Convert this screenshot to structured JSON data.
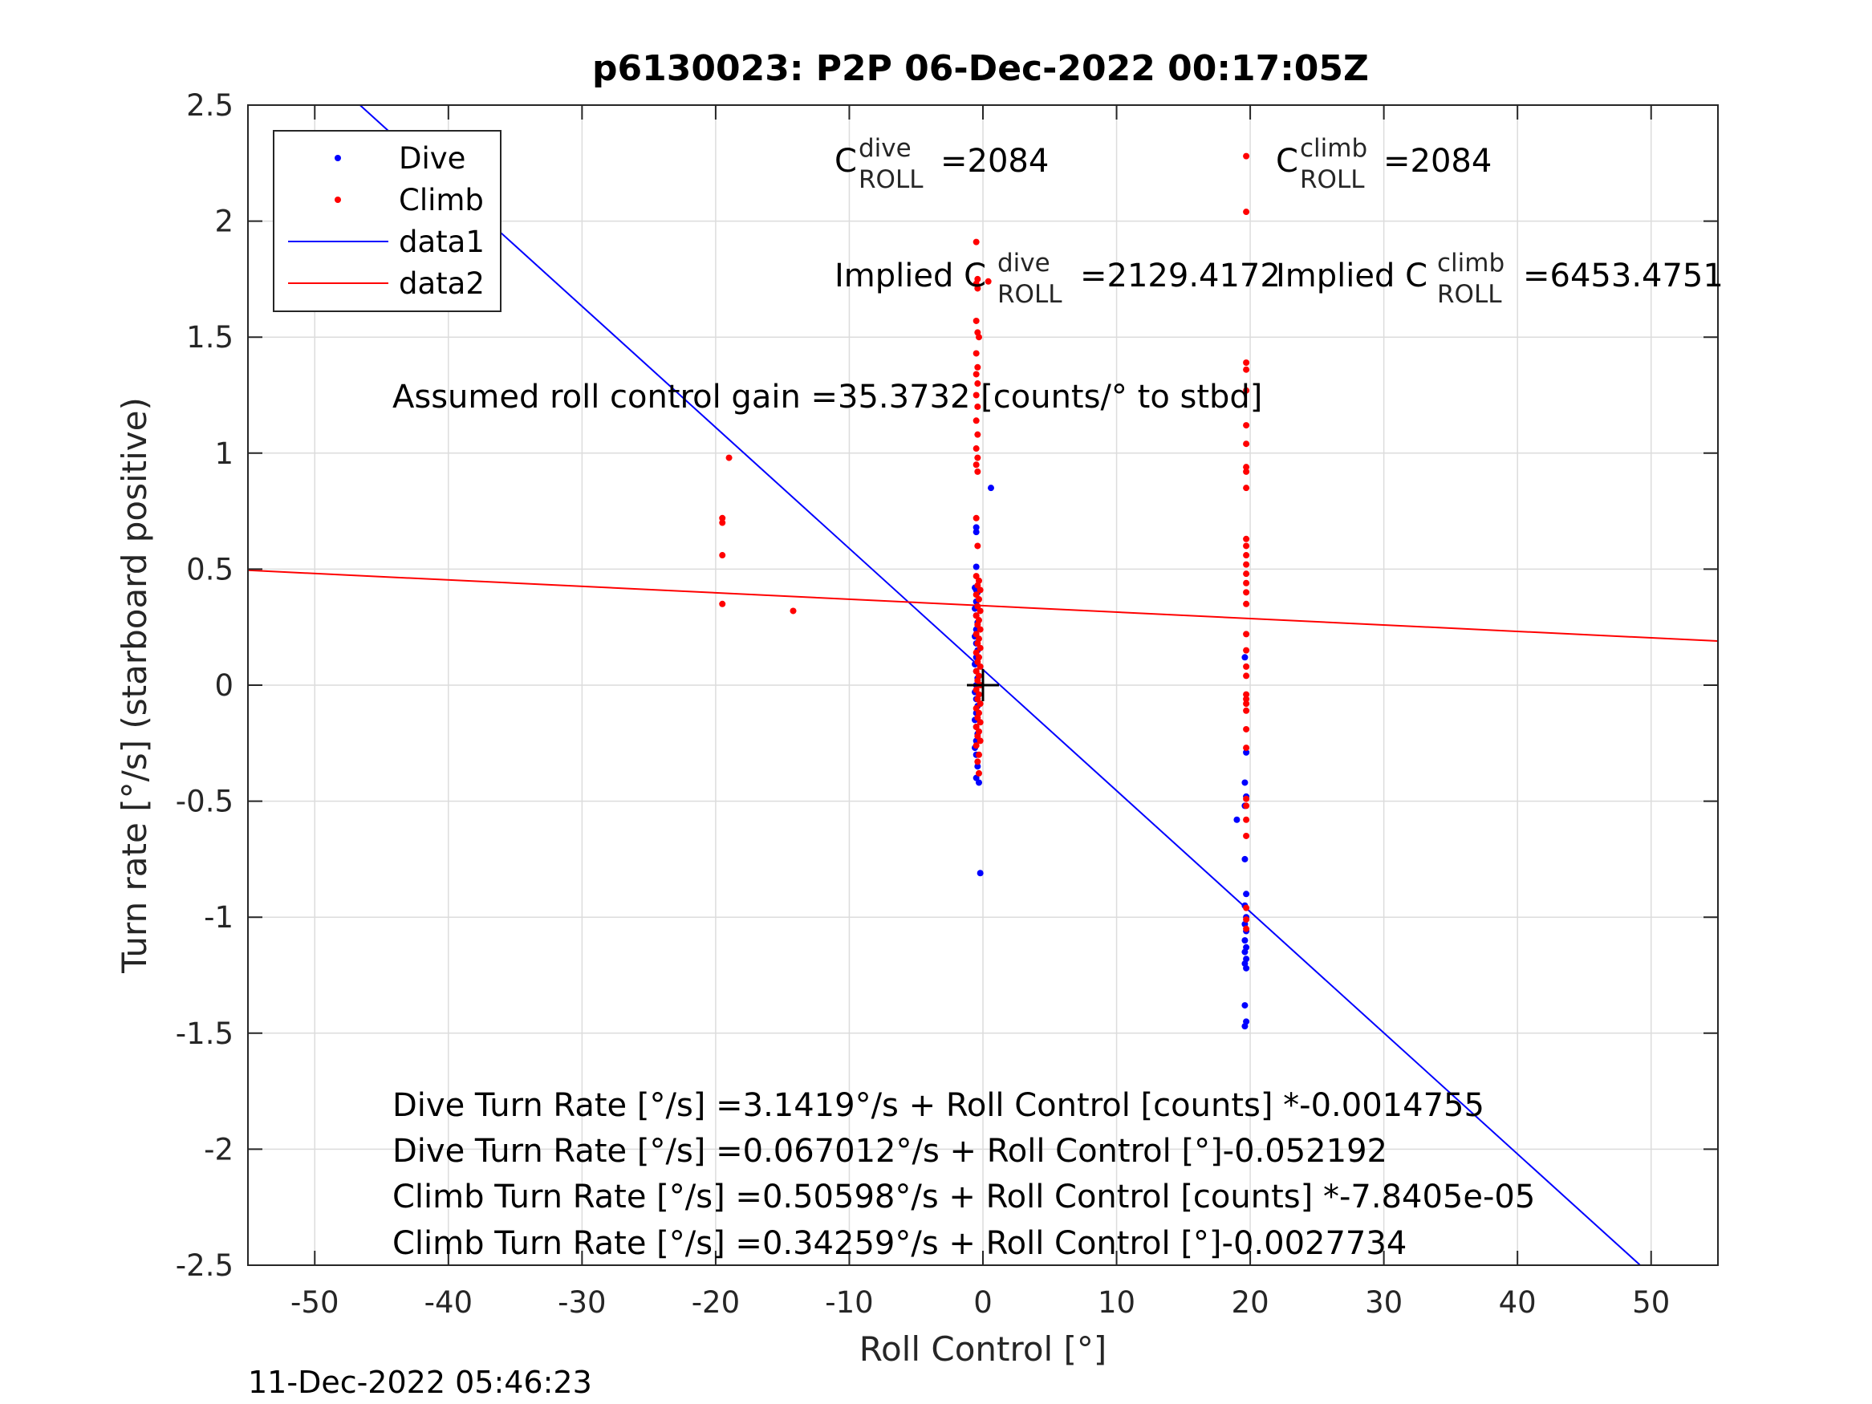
{
  "chart_data": {
    "type": "scatter",
    "title": "p6130023: P2P 06-Dec-2022 00:17:05Z",
    "xlabel": "Roll Control [°]",
    "ylabel": "Turn rate [°/s] (starboard positive)",
    "xlim": [
      -55,
      55
    ],
    "ylim": [
      -2.5,
      2.5
    ],
    "xticks": [
      -50,
      -40,
      -30,
      -20,
      -10,
      0,
      10,
      20,
      30,
      40,
      50
    ],
    "yticks": [
      -2.5,
      -2,
      -1.5,
      -1,
      -0.5,
      0,
      0.5,
      1,
      1.5,
      2,
      2.5
    ],
    "grid": true,
    "legend_position": "top-left",
    "colors": {
      "dive": "#0000ff",
      "climb": "#ff0000",
      "marker": "#000000"
    },
    "series": [
      {
        "name": "Dive",
        "kind": "points",
        "points": [
          [
            0.6,
            0.85
          ],
          [
            -0.5,
            0.68
          ],
          [
            -0.5,
            0.66
          ],
          [
            -0.5,
            0.51
          ],
          [
            -0.6,
            0.42
          ],
          [
            -0.5,
            0.41
          ],
          [
            -0.4,
            0.4
          ],
          [
            -0.5,
            0.36
          ],
          [
            -0.6,
            0.33
          ],
          [
            -0.5,
            0.3
          ],
          [
            -0.4,
            0.27
          ],
          [
            -0.5,
            0.24
          ],
          [
            -0.6,
            0.21
          ],
          [
            -0.5,
            0.18
          ],
          [
            -0.4,
            0.15
          ],
          [
            -0.5,
            0.12
          ],
          [
            -0.6,
            0.09
          ],
          [
            -0.5,
            0.06
          ],
          [
            -0.4,
            0.03
          ],
          [
            -0.5,
            0.0
          ],
          [
            -0.6,
            -0.03
          ],
          [
            -0.5,
            -0.06
          ],
          [
            -0.4,
            -0.09
          ],
          [
            -0.5,
            -0.12
          ],
          [
            -0.6,
            -0.15
          ],
          [
            -0.5,
            -0.18
          ],
          [
            -0.4,
            -0.21
          ],
          [
            -0.5,
            -0.24
          ],
          [
            -0.6,
            -0.27
          ],
          [
            -0.5,
            -0.3
          ],
          [
            -0.4,
            -0.35
          ],
          [
            -0.5,
            -0.4
          ],
          [
            -0.3,
            -0.42
          ],
          [
            -0.2,
            -0.81
          ],
          [
            19.6,
            0.12
          ],
          [
            19.7,
            -0.29
          ],
          [
            19.6,
            -0.42
          ],
          [
            19.7,
            -0.48
          ],
          [
            19.6,
            -0.52
          ],
          [
            19.0,
            -0.58
          ],
          [
            19.6,
            -0.75
          ],
          [
            19.7,
            -0.9
          ],
          [
            19.6,
            -0.95
          ],
          [
            19.7,
            -1.0
          ],
          [
            19.6,
            -1.03
          ],
          [
            19.7,
            -1.06
          ],
          [
            19.6,
            -1.1
          ],
          [
            19.7,
            -1.13
          ],
          [
            19.6,
            -1.15
          ],
          [
            19.7,
            -1.18
          ],
          [
            19.6,
            -1.2
          ],
          [
            19.7,
            -1.22
          ],
          [
            19.6,
            -1.38
          ],
          [
            19.7,
            -1.45
          ],
          [
            19.6,
            -1.47
          ]
        ]
      },
      {
        "name": "Climb",
        "kind": "points",
        "points": [
          [
            -19.5,
            0.72
          ],
          [
            -19.5,
            0.7
          ],
          [
            -19.5,
            0.56
          ],
          [
            -19.5,
            0.35
          ],
          [
            -19.0,
            0.98
          ],
          [
            -14.2,
            0.32
          ],
          [
            -0.5,
            1.91
          ],
          [
            -0.4,
            1.75
          ],
          [
            -0.5,
            1.73
          ],
          [
            0.4,
            1.74
          ],
          [
            -0.4,
            1.71
          ],
          [
            -0.5,
            1.57
          ],
          [
            -0.4,
            1.52
          ],
          [
            -0.3,
            1.5
          ],
          [
            -0.5,
            1.43
          ],
          [
            -0.4,
            1.37
          ],
          [
            -0.5,
            1.34
          ],
          [
            -0.4,
            1.3
          ],
          [
            -0.5,
            1.25
          ],
          [
            -0.4,
            1.2
          ],
          [
            -0.5,
            1.14
          ],
          [
            -0.4,
            1.08
          ],
          [
            -0.5,
            1.02
          ],
          [
            -0.4,
            0.98
          ],
          [
            -0.5,
            0.95
          ],
          [
            -0.4,
            0.92
          ],
          [
            -0.5,
            0.72
          ],
          [
            -0.4,
            0.6
          ],
          [
            -0.5,
            0.47
          ],
          [
            -0.3,
            0.45
          ],
          [
            -0.4,
            0.43
          ],
          [
            -0.2,
            0.41
          ],
          [
            -0.5,
            0.39
          ],
          [
            -0.3,
            0.37
          ],
          [
            -0.4,
            0.34
          ],
          [
            -0.2,
            0.32
          ],
          [
            -0.5,
            0.3
          ],
          [
            -0.3,
            0.28
          ],
          [
            -0.4,
            0.26
          ],
          [
            -0.2,
            0.24
          ],
          [
            -0.5,
            0.22
          ],
          [
            -0.3,
            0.2
          ],
          [
            -0.4,
            0.18
          ],
          [
            -0.2,
            0.16
          ],
          [
            -0.5,
            0.14
          ],
          [
            -0.3,
            0.12
          ],
          [
            -0.4,
            0.1
          ],
          [
            -0.2,
            0.08
          ],
          [
            -0.5,
            0.06
          ],
          [
            -0.3,
            0.04
          ],
          [
            -0.4,
            0.02
          ],
          [
            -0.2,
            0.0
          ],
          [
            -0.5,
            -0.02
          ],
          [
            -0.3,
            -0.04
          ],
          [
            -0.4,
            -0.06
          ],
          [
            -0.2,
            -0.08
          ],
          [
            -0.5,
            -0.1
          ],
          [
            -0.3,
            -0.12
          ],
          [
            -0.4,
            -0.14
          ],
          [
            -0.2,
            -0.16
          ],
          [
            -0.5,
            -0.18
          ],
          [
            -0.3,
            -0.2
          ],
          [
            -0.4,
            -0.22
          ],
          [
            -0.2,
            -0.24
          ],
          [
            -0.5,
            -0.26
          ],
          [
            -0.3,
            -0.3
          ],
          [
            -0.4,
            -0.33
          ],
          [
            -0.3,
            -0.38
          ],
          [
            19.7,
            2.28
          ],
          [
            19.7,
            2.04
          ],
          [
            19.7,
            1.39
          ],
          [
            19.7,
            1.36
          ],
          [
            19.7,
            1.27
          ],
          [
            19.7,
            1.12
          ],
          [
            19.7,
            1.04
          ],
          [
            19.7,
            0.94
          ],
          [
            19.7,
            0.92
          ],
          [
            19.7,
            0.85
          ],
          [
            19.7,
            0.63
          ],
          [
            19.7,
            0.6
          ],
          [
            19.7,
            0.56
          ],
          [
            19.7,
            0.52
          ],
          [
            19.7,
            0.48
          ],
          [
            19.7,
            0.44
          ],
          [
            19.7,
            0.4
          ],
          [
            19.7,
            0.35
          ],
          [
            19.7,
            0.22
          ],
          [
            19.7,
            0.15
          ],
          [
            19.7,
            0.08
          ],
          [
            19.7,
            0.04
          ],
          [
            19.7,
            -0.04
          ],
          [
            19.7,
            -0.06
          ],
          [
            19.7,
            -0.08
          ],
          [
            19.7,
            -0.11
          ],
          [
            19.7,
            -0.19
          ],
          [
            19.7,
            -0.27
          ],
          [
            19.7,
            -0.49
          ],
          [
            19.7,
            -0.52
          ],
          [
            19.7,
            -0.58
          ],
          [
            19.7,
            -0.65
          ],
          [
            19.7,
            -0.96
          ],
          [
            19.7,
            -1.01
          ],
          [
            19.7,
            -1.05
          ]
        ]
      },
      {
        "name": "data1",
        "kind": "line",
        "intercept": 0.067012,
        "slope": -0.052192
      },
      {
        "name": "data2",
        "kind": "line",
        "intercept": 0.34259,
        "slope": -0.0027734
      }
    ],
    "center_marker": [
      0,
      0
    ],
    "annotations": {
      "c_roll_dive": {
        "prefix": "C",
        "sup": "dive",
        "sub": "ROLL",
        "value": "=2084"
      },
      "c_roll_climb": {
        "prefix": "C",
        "sup": "climb",
        "sub": "ROLL",
        "value": "=2084"
      },
      "implied_dive": {
        "prefix": "Implied C",
        "sup": "dive",
        "sub": "ROLL",
        "value": "=2129.4172"
      },
      "implied_climb": {
        "prefix": "Implied C",
        "sup": "climb",
        "sub": "ROLL",
        "value": "=6453.4751"
      },
      "gain": "Assumed roll control gain =35.3732 [counts/° to stbd]",
      "fit_lines": [
        "Dive Turn Rate [°/s] =3.1419°/s + Roll Control [counts] *-0.0014755",
        "Dive Turn Rate [°/s] =0.067012°/s + Roll Control [°]-0.052192",
        "Climb Turn Rate [°/s] =0.50598°/s + Roll Control [counts] *-7.8405e-05",
        "Climb Turn Rate [°/s] =0.34259°/s + Roll Control [°]-0.0027734"
      ]
    },
    "timestamp": "11-Dec-2022 05:46:23"
  }
}
